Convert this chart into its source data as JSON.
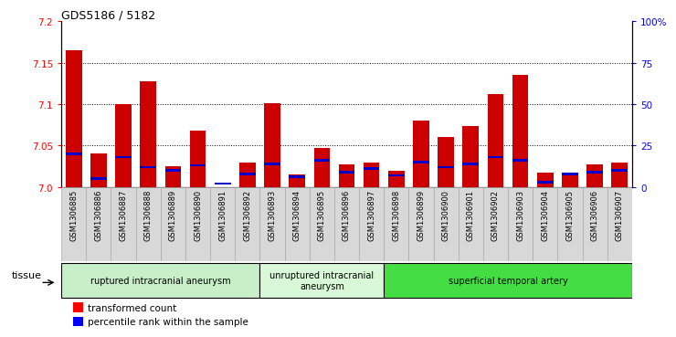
{
  "title": "GDS5186 / 5182",
  "samples": [
    "GSM1306885",
    "GSM1306886",
    "GSM1306887",
    "GSM1306888",
    "GSM1306889",
    "GSM1306890",
    "GSM1306891",
    "GSM1306892",
    "GSM1306893",
    "GSM1306894",
    "GSM1306895",
    "GSM1306896",
    "GSM1306897",
    "GSM1306898",
    "GSM1306899",
    "GSM1306900",
    "GSM1306901",
    "GSM1306902",
    "GSM1306903",
    "GSM1306904",
    "GSM1306905",
    "GSM1306906",
    "GSM1306907"
  ],
  "red_values": [
    7.165,
    7.04,
    7.1,
    7.128,
    7.025,
    7.068,
    7.0,
    7.03,
    7.101,
    7.015,
    7.047,
    7.027,
    7.03,
    7.02,
    7.08,
    7.06,
    7.073,
    7.112,
    7.135,
    7.017,
    7.015,
    7.027,
    7.03
  ],
  "blue_values_pct": [
    20,
    5,
    18,
    12,
    10,
    13,
    2,
    8,
    14,
    6,
    16,
    9,
    11,
    7,
    15,
    12,
    14,
    18,
    16,
    3,
    8,
    9,
    10
  ],
  "groups": [
    {
      "label": "ruptured intracranial aneurysm",
      "start": 0,
      "end": 8,
      "color": "#c8f0c8"
    },
    {
      "label": "unruptured intracranial\naneurysm",
      "start": 8,
      "end": 13,
      "color": "#d8f8d8"
    },
    {
      "label": "superficial temporal artery",
      "start": 13,
      "end": 23,
      "color": "#44dd44"
    }
  ],
  "ylim_left": [
    7.0,
    7.2
  ],
  "ylim_right": [
    0,
    100
  ],
  "yticks_left": [
    7.0,
    7.05,
    7.1,
    7.15,
    7.2
  ],
  "yticks_right": [
    0,
    25,
    50,
    75,
    100
  ],
  "ytick_labels_right": [
    "0",
    "25",
    "50",
    "75",
    "100%"
  ],
  "bar_color": "#cc0000",
  "blue_color": "#0000cc",
  "plot_bg": "#ffffff",
  "xtick_bg": "#d8d8d8"
}
